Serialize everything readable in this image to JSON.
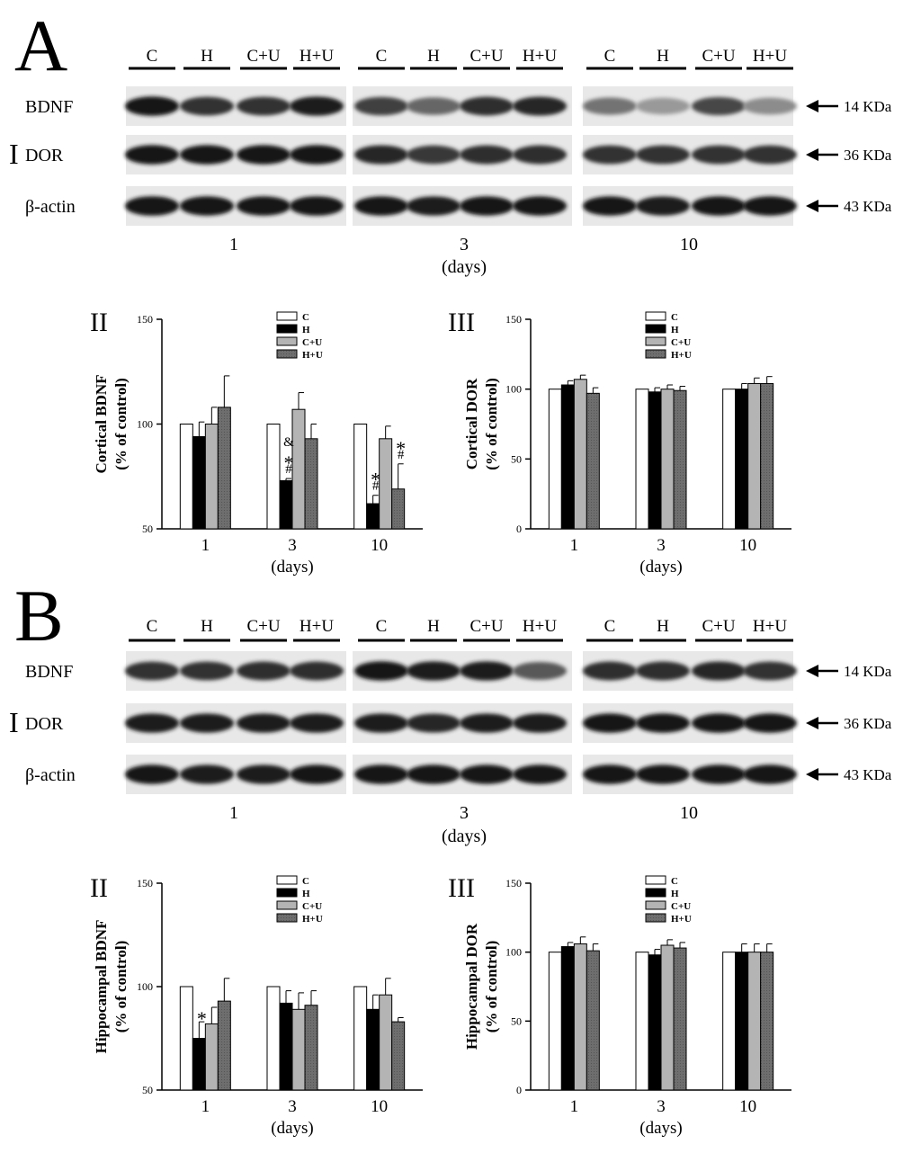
{
  "panels": [
    {
      "letter": "A",
      "blot": {
        "roman": "I",
        "lane_labels": [
          "C",
          "H",
          "C+U",
          "H+U"
        ],
        "rows": [
          {
            "protein": "BDNF",
            "size": "14 KDa",
            "intensity": [
              [
                0.9,
                0.8,
                0.8,
                0.88
              ],
              [
                0.75,
                0.6,
                0.82,
                0.85
              ],
              [
                0.55,
                0.4,
                0.72,
                0.45
              ]
            ]
          },
          {
            "protein": "DOR",
            "size": "36 KDa",
            "intensity": [
              [
                0.9,
                0.9,
                0.9,
                0.9
              ],
              [
                0.85,
                0.78,
                0.82,
                0.82
              ],
              [
                0.8,
                0.8,
                0.8,
                0.8
              ]
            ]
          },
          {
            "protein": "β-actin",
            "size": "43 KDa",
            "intensity": [
              [
                0.92,
                0.9,
                0.9,
                0.92
              ],
              [
                0.9,
                0.88,
                0.9,
                0.9
              ],
              [
                0.9,
                0.88,
                0.9,
                0.9
              ]
            ]
          }
        ],
        "time_labels": [
          "1",
          "3",
          "10"
        ],
        "days_label": "(days)"
      }
    },
    {
      "letter": "B",
      "blot": {
        "roman": "I",
        "lane_labels": [
          "C",
          "H",
          "C+U",
          "H+U"
        ],
        "rows": [
          {
            "protein": "BDNF",
            "size": "14 KDa",
            "intensity": [
              [
                0.8,
                0.8,
                0.82,
                0.82
              ],
              [
                0.9,
                0.88,
                0.88,
                0.65
              ],
              [
                0.82,
                0.82,
                0.85,
                0.8
              ]
            ]
          },
          {
            "protein": "DOR",
            "size": "36 KDa",
            "intensity": [
              [
                0.88,
                0.88,
                0.88,
                0.88
              ],
              [
                0.88,
                0.85,
                0.88,
                0.88
              ],
              [
                0.9,
                0.9,
                0.9,
                0.9
              ]
            ]
          },
          {
            "protein": "β-actin",
            "size": "43 KDa",
            "intensity": [
              [
                0.9,
                0.88,
                0.88,
                0.9
              ],
              [
                0.9,
                0.9,
                0.9,
                0.9
              ],
              [
                0.9,
                0.9,
                0.9,
                0.9
              ]
            ]
          }
        ],
        "time_labels": [
          "1",
          "3",
          "10"
        ],
        "days_label": "(days)"
      }
    }
  ],
  "colors": {
    "C": "#ffffff",
    "H": "#000000",
    "C+U": "#b4b4b4",
    "H+U": "#6e6e6e"
  },
  "chart_data": [
    {
      "type": "bar",
      "roman": "II",
      "ylabel_line1": "Cortical BDNF",
      "ylabel_line2": "(% of control)",
      "xlabel": "(days)",
      "ylim": [
        50,
        150
      ],
      "yticks": [
        "50",
        "100",
        "150"
      ],
      "categories": [
        "1",
        "3",
        "10"
      ],
      "series": [
        {
          "name": "C",
          "values": [
            100,
            100,
            100
          ],
          "errors": [
            0,
            0,
            0
          ]
        },
        {
          "name": "H",
          "values": [
            94,
            73,
            62
          ],
          "errors": [
            7,
            1,
            4
          ]
        },
        {
          "name": "C+U",
          "values": [
            100,
            107,
            93
          ],
          "errors": [
            8,
            8,
            6
          ]
        },
        {
          "name": "H+U",
          "values": [
            108,
            93,
            69
          ],
          "errors": [
            15,
            7,
            12
          ]
        }
      ],
      "annotations": [
        {
          "category": 1,
          "series": 1,
          "marks": [
            "#",
            "*",
            "&"
          ]
        },
        {
          "category": 2,
          "series": 1,
          "marks": [
            "#",
            "*"
          ]
        },
        {
          "category": 2,
          "series": 3,
          "marks": [
            "#",
            "*"
          ]
        }
      ]
    },
    {
      "type": "bar",
      "roman": "III",
      "ylabel_line1": "Cortical DOR",
      "ylabel_line2": "(% of control)",
      "xlabel": "(days)",
      "ylim": [
        0,
        150
      ],
      "yticks": [
        "0",
        "50",
        "100",
        "150"
      ],
      "categories": [
        "1",
        "3",
        "10"
      ],
      "series": [
        {
          "name": "C",
          "values": [
            100,
            100,
            100
          ],
          "errors": [
            0,
            0,
            0
          ]
        },
        {
          "name": "H",
          "values": [
            103,
            98,
            100
          ],
          "errors": [
            3,
            3,
            4
          ]
        },
        {
          "name": "C+U",
          "values": [
            107,
            100,
            104
          ],
          "errors": [
            3,
            3,
            4
          ]
        },
        {
          "name": "H+U",
          "values": [
            97,
            99,
            104
          ],
          "errors": [
            4,
            3,
            5
          ]
        }
      ],
      "annotations": []
    },
    {
      "type": "bar",
      "roman": "II",
      "ylabel_line1": "Hippocampal BDNF",
      "ylabel_line2": "(% of control)",
      "xlabel": "(days)",
      "ylim": [
        50,
        150
      ],
      "yticks": [
        "50",
        "100",
        "150"
      ],
      "categories": [
        "1",
        "3",
        "10"
      ],
      "series": [
        {
          "name": "C",
          "values": [
            100,
            100,
            100
          ],
          "errors": [
            0,
            0,
            0
          ]
        },
        {
          "name": "H",
          "values": [
            75,
            92,
            89
          ],
          "errors": [
            8,
            6,
            7
          ]
        },
        {
          "name": "C+U",
          "values": [
            82,
            89,
            96
          ],
          "errors": [
            8,
            8,
            8
          ]
        },
        {
          "name": "H+U",
          "values": [
            93,
            91,
            83
          ],
          "errors": [
            11,
            7,
            2
          ]
        }
      ],
      "annotations": [
        {
          "category": 0,
          "series": 1,
          "marks": [
            "*"
          ]
        }
      ]
    },
    {
      "type": "bar",
      "roman": "III",
      "ylabel_line1": "Hippocampal DOR",
      "ylabel_line2": "(% of control)",
      "xlabel": "(days)",
      "ylim": [
        0,
        150
      ],
      "yticks": [
        "0",
        "50",
        "100",
        "150"
      ],
      "categories": [
        "1",
        "3",
        "10"
      ],
      "series": [
        {
          "name": "C",
          "values": [
            100,
            100,
            100
          ],
          "errors": [
            0,
            0,
            0
          ]
        },
        {
          "name": "H",
          "values": [
            104,
            98,
            100
          ],
          "errors": [
            3,
            4,
            6
          ]
        },
        {
          "name": "C+U",
          "values": [
            106,
            105,
            100
          ],
          "errors": [
            5,
            4,
            6
          ]
        },
        {
          "name": "H+U",
          "values": [
            101,
            103,
            100
          ],
          "errors": [
            5,
            4,
            6
          ]
        }
      ],
      "annotations": []
    }
  ]
}
